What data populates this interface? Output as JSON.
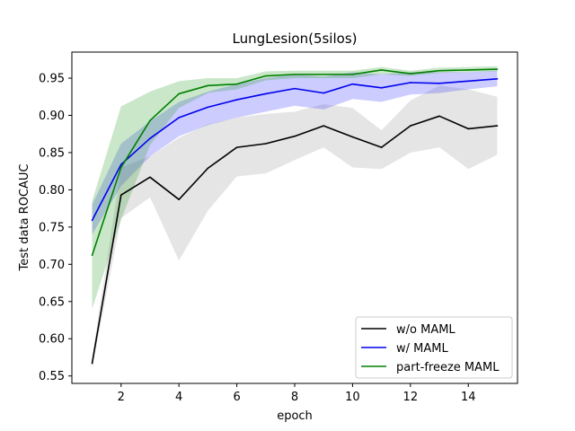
{
  "chart_data": {
    "type": "line",
    "title": "LungLesion(5silos)",
    "xlabel": "epoch",
    "ylabel": "Test data ROCAUC",
    "xlim": [
      0.3,
      15.7
    ],
    "ylim": [
      0.54,
      0.985
    ],
    "xticks": [
      2,
      4,
      6,
      8,
      10,
      12,
      14
    ],
    "yticks": [
      0.55,
      0.6,
      0.65,
      0.7,
      0.75,
      0.8,
      0.85,
      0.9,
      0.95
    ],
    "grid": false,
    "legend_position": "lower-right",
    "x": [
      1,
      2,
      3,
      4,
      5,
      6,
      7,
      8,
      9,
      10,
      11,
      12,
      13,
      14,
      15
    ],
    "series": [
      {
        "name": "w/o MAML",
        "color": "#000000",
        "band_color": "#999999",
        "values": [
          0.567,
          0.793,
          0.817,
          0.787,
          0.829,
          0.857,
          0.862,
          0.872,
          0.886,
          0.871,
          0.857,
          0.886,
          0.899,
          0.882,
          0.886
        ],
        "lower": [
          0.56,
          0.762,
          0.79,
          0.705,
          0.772,
          0.818,
          0.822,
          0.84,
          0.857,
          0.83,
          0.828,
          0.85,
          0.857,
          0.828,
          0.847
        ],
        "upper": [
          0.575,
          0.83,
          0.845,
          0.87,
          0.888,
          0.897,
          0.902,
          0.905,
          0.915,
          0.91,
          0.88,
          0.92,
          0.94,
          0.935,
          0.925
        ]
      },
      {
        "name": "w/ MAML",
        "color": "#0000ee",
        "band_color": "#3333ff",
        "values": [
          0.759,
          0.834,
          0.869,
          0.897,
          0.911,
          0.921,
          0.929,
          0.936,
          0.93,
          0.942,
          0.937,
          0.944,
          0.943,
          0.946,
          0.949
        ],
        "lower": [
          0.74,
          0.805,
          0.845,
          0.872,
          0.887,
          0.897,
          0.905,
          0.913,
          0.908,
          0.922,
          0.918,
          0.928,
          0.93,
          0.935,
          0.939
        ],
        "upper": [
          0.78,
          0.862,
          0.892,
          0.918,
          0.932,
          0.942,
          0.95,
          0.955,
          0.952,
          0.958,
          0.955,
          0.958,
          0.958,
          0.958,
          0.96
        ]
      },
      {
        "name": "part-freeze MAML",
        "color": "#008000",
        "band_color": "#2ca02c",
        "values": [
          0.712,
          0.83,
          0.893,
          0.929,
          0.94,
          0.942,
          0.953,
          0.955,
          0.955,
          0.955,
          0.961,
          0.956,
          0.96,
          0.961,
          0.962
        ],
        "lower": [
          0.64,
          0.76,
          0.86,
          0.91,
          0.93,
          0.935,
          0.947,
          0.95,
          0.95,
          0.95,
          0.955,
          0.953,
          0.957,
          0.958,
          0.959
        ],
        "upper": [
          0.785,
          0.912,
          0.932,
          0.946,
          0.95,
          0.95,
          0.959,
          0.96,
          0.96,
          0.96,
          0.965,
          0.96,
          0.964,
          0.965,
          0.966
        ]
      }
    ]
  }
}
